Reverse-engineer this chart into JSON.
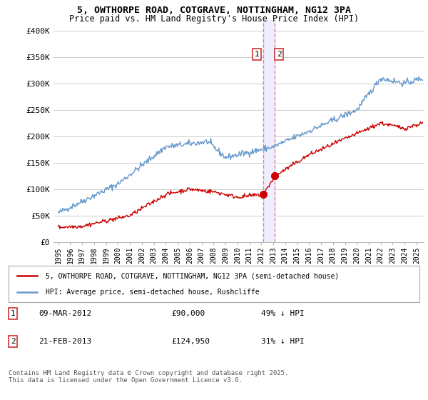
{
  "title_line1": "5, OWTHORPE ROAD, COTGRAVE, NOTTINGHAM, NG12 3PA",
  "title_line2": "Price paid vs. HM Land Registry's House Price Index (HPI)",
  "ylim": [
    0,
    420000
  ],
  "yticks": [
    0,
    50000,
    100000,
    150000,
    200000,
    250000,
    300000,
    350000,
    400000
  ],
  "ytick_labels": [
    "£0",
    "£50K",
    "£100K",
    "£150K",
    "£200K",
    "£250K",
    "£300K",
    "£350K",
    "£400K"
  ],
  "legend_line1": "5, OWTHORPE ROAD, COTGRAVE, NOTTINGHAM, NG12 3PA (semi-detached house)",
  "legend_line2": "HPI: Average price, semi-detached house, Rushcliffe",
  "annotation1": {
    "label": "1",
    "date": "09-MAR-2012",
    "price": "£90,000",
    "hpi": "49% ↓ HPI"
  },
  "annotation2": {
    "label": "2",
    "date": "21-FEB-2013",
    "price": "£124,950",
    "hpi": "31% ↓ HPI"
  },
  "footer": "Contains HM Land Registry data © Crown copyright and database right 2025.\nThis data is licensed under the Open Government Licence v3.0.",
  "sale1_year": 2012.19,
  "sale1_price": 90000,
  "sale2_year": 2013.14,
  "sale2_price": 124950,
  "line_color_red": "#cc0000",
  "line_color_blue": "#6699cc",
  "vline_color": "#dd8888",
  "vfill_color": "#eeeeff",
  "background_color": "#ffffff",
  "grid_color": "#cccccc"
}
